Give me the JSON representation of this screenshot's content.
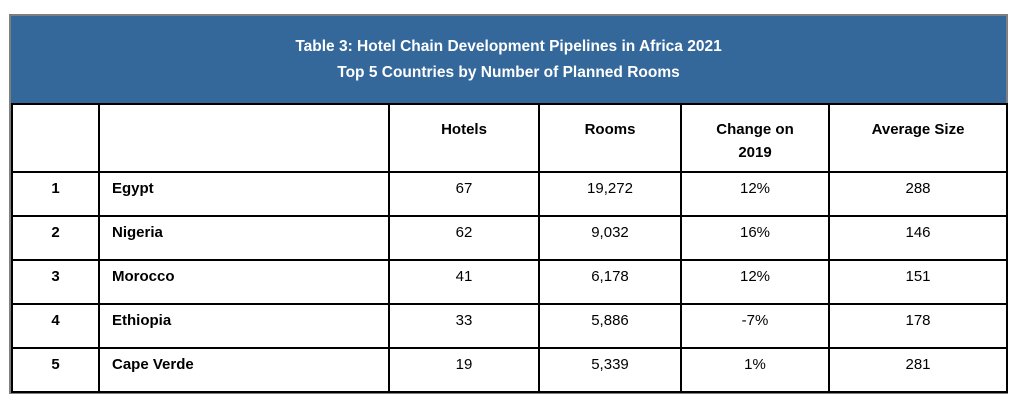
{
  "figure": {
    "title_line1": "Table 3: Hotel Chain Development Pipelines in Africa 2021",
    "title_line2": "Top 5 Countries by Number of Planned Rooms"
  },
  "chart_data": {
    "type": "table",
    "title": "Table 3: Hotel Chain Development Pipelines in Africa 2021",
    "subtitle": "Top 5 Countries by Number of Planned Rooms",
    "columns": [
      "",
      "",
      "Hotels",
      "Rooms",
      "Change on 2019",
      "Average Size"
    ],
    "rows": [
      [
        "1",
        "Egypt",
        "67",
        "19,272",
        "12%",
        "288"
      ],
      [
        "2",
        "Nigeria",
        "62",
        "9,032",
        "16%",
        "146"
      ],
      [
        "3",
        "Morocco",
        "41",
        "6,178",
        "12%",
        "151"
      ],
      [
        "4",
        "Ethiopia",
        "33",
        "5,886",
        "-7%",
        "178"
      ],
      [
        "5",
        "Cape Verde",
        "19",
        "5,339",
        "1%",
        "281"
      ]
    ]
  },
  "colors": {
    "band_background": "#34689B",
    "band_text": "#FFFFFF",
    "table_border": "#000000",
    "outer_border": "#7F7F7F",
    "body_text": "#000000"
  }
}
